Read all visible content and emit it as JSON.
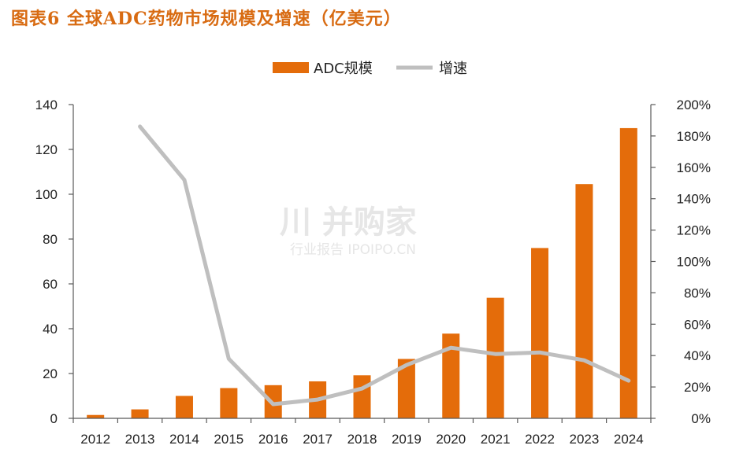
{
  "title": "图表6 全球ADC药物市场规模及增速（亿美元）",
  "watermark": {
    "main": "川 并购家",
    "sub": "行业报告 IPOIPO.CN"
  },
  "colors": {
    "bar": "#e46c0a",
    "line": "#bfbfbf",
    "title": "#d86b12"
  },
  "chart_data": {
    "type": "bar",
    "categories": [
      "2012",
      "2013",
      "2014",
      "2015",
      "2016",
      "2017",
      "2018",
      "2019",
      "2020",
      "2021",
      "2022",
      "2023",
      "2024"
    ],
    "series": [
      {
        "name": "ADC规模",
        "type": "bar",
        "axis": "left",
        "values": [
          1.5,
          4,
          10,
          13.5,
          14.8,
          16.5,
          19.2,
          26.5,
          37.8,
          53.8,
          76,
          104.5,
          129.5
        ]
      },
      {
        "name": "增速",
        "type": "line",
        "axis": "right",
        "values": [
          null,
          1.86,
          1.52,
          0.38,
          0.09,
          0.12,
          0.19,
          0.34,
          0.45,
          0.41,
          0.42,
          0.37,
          0.24
        ]
      }
    ],
    "left_axis": {
      "ylim": [
        0,
        140
      ],
      "ticks": [
        "0",
        "20",
        "40",
        "60",
        "80",
        "100",
        "120",
        "140"
      ]
    },
    "right_axis": {
      "ylim": [
        0,
        2.0
      ],
      "ticks": [
        "0%",
        "20%",
        "40%",
        "60%",
        "80%",
        "100%",
        "120%",
        "140%",
        "160%",
        "180%",
        "200%"
      ]
    },
    "legend": {
      "placement": "top-center",
      "labels": [
        "ADC规模",
        "增速"
      ]
    },
    "grid": false
  }
}
